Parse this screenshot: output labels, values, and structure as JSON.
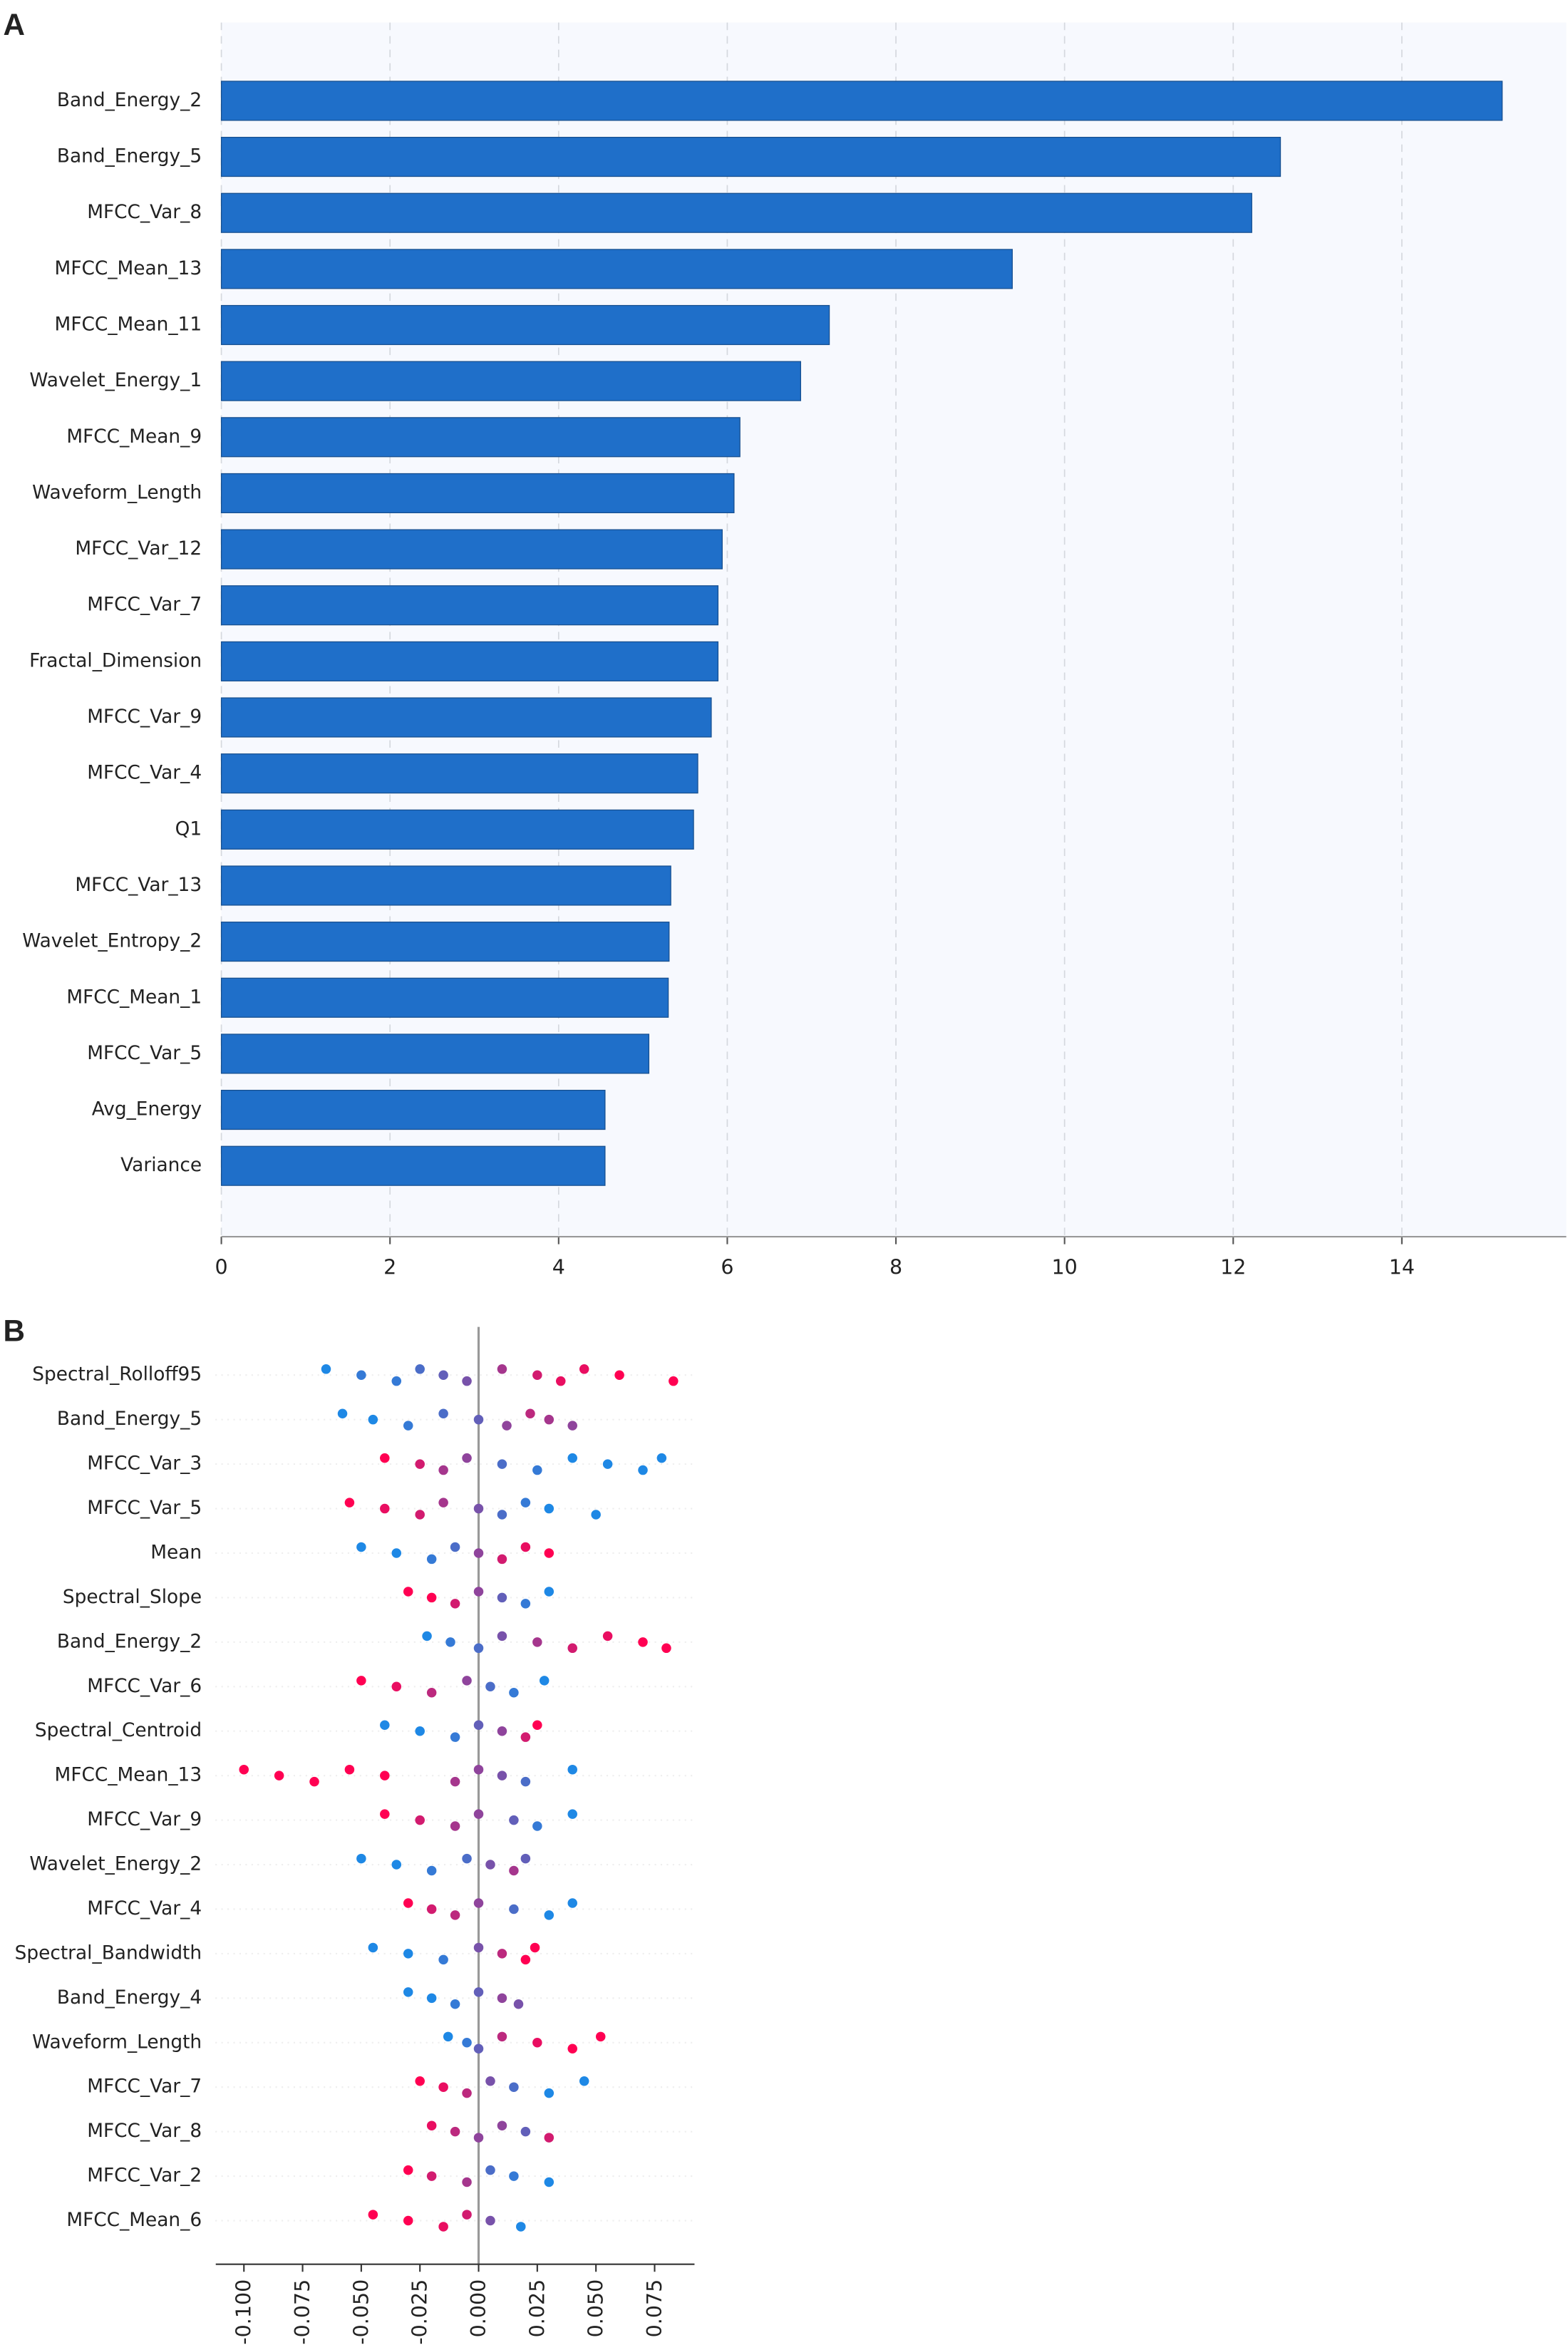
{
  "chart_data": [
    {
      "type": "bar",
      "panel": "A",
      "categories": [
        "Band_Energy_2",
        "Band_Energy_5",
        "MFCC_Var_8",
        "MFCC_Mean_13",
        "MFCC_Mean_11",
        "Wavelet_Energy_1",
        "MFCC_Mean_9",
        "Waveform_Length",
        "MFCC_Var_12",
        "MFCC_Var_7",
        "Fractal_Dimension",
        "MFCC_Var_9",
        "MFCC_Var_4",
        "Q1",
        "MFCC_Var_13",
        "Wavelet_Entropy_2",
        "MFCC_Mean_1",
        "MFCC_Var_5",
        "Avg_Energy",
        "Variance"
      ],
      "values": [
        15.19,
        12.56,
        12.22,
        9.38,
        7.21,
        6.87,
        6.15,
        6.08,
        5.94,
        5.89,
        5.89,
        5.81,
        5.65,
        5.6,
        5.33,
        5.31,
        5.3,
        5.07,
        4.55,
        4.55
      ],
      "color": "#1f6fc9",
      "xlim": [
        0,
        15.95
      ],
      "xticks": [
        0,
        2,
        4,
        6,
        8,
        10,
        12,
        14
      ],
      "grid": true
    },
    {
      "type": "beeswarm",
      "panel": "B",
      "categories": [
        "Spectral_Rolloff95",
        "Band_Energy_5",
        "MFCC_Var_3",
        "MFCC_Var_5",
        "Mean",
        "Spectral_Slope",
        "Band_Energy_2",
        "MFCC_Var_6",
        "Spectral_Centroid",
        "MFCC_Mean_13",
        "MFCC_Var_9",
        "Wavelet_Energy_2",
        "MFCC_Var_4",
        "Spectral_Bandwidth",
        "Band_Energy_4",
        "Waveform_Length",
        "MFCC_Var_7",
        "MFCC_Var_8",
        "MFCC_Var_2",
        "MFCC_Mean_6"
      ],
      "colors": [
        "#1e88e5",
        "#ff0052"
      ],
      "points": [
        {
          "values": [
            -0.065,
            -0.05,
            -0.035,
            -0.025,
            -0.015,
            -0.005,
            0.01,
            0.025,
            0.035,
            0.045,
            0.06,
            0.083
          ],
          "color_values": [
            0,
            0.1,
            0.1,
            0.2,
            0.3,
            0.4,
            0.6,
            0.8,
            0.9,
            0.9,
            1,
            1
          ]
        },
        {
          "values": [
            -0.058,
            -0.045,
            -0.03,
            -0.015,
            0,
            0.012,
            0.022,
            0.03,
            0.04
          ],
          "color_values": [
            0,
            0,
            0.1,
            0.2,
            0.3,
            0.5,
            0.7,
            0.6,
            0.5
          ]
        },
        {
          "values": [
            -0.04,
            -0.025,
            -0.015,
            -0.005,
            0.01,
            0.025,
            0.04,
            0.055,
            0.07,
            0.078
          ],
          "color_values": [
            1,
            0.8,
            0.6,
            0.5,
            0.2,
            0.1,
            0,
            0,
            0,
            0
          ]
        },
        {
          "values": [
            -0.055,
            -0.04,
            -0.025,
            -0.015,
            0,
            0.01,
            0.02,
            0.03,
            0.05
          ],
          "color_values": [
            1,
            0.9,
            0.8,
            0.6,
            0.4,
            0.2,
            0.1,
            0,
            0
          ]
        },
        {
          "values": [
            -0.05,
            -0.035,
            -0.02,
            -0.01,
            0,
            0.01,
            0.02,
            0.03
          ],
          "color_values": [
            0,
            0,
            0.1,
            0.2,
            0.5,
            0.8,
            0.9,
            1
          ]
        },
        {
          "values": [
            -0.03,
            -0.02,
            -0.01,
            0,
            0.01,
            0.02,
            0.03
          ],
          "color_values": [
            1,
            1,
            0.8,
            0.5,
            0.3,
            0.1,
            0
          ]
        },
        {
          "values": [
            -0.022,
            -0.012,
            0,
            0.01,
            0.025,
            0.04,
            0.055,
            0.07,
            0.08
          ],
          "color_values": [
            0,
            0.1,
            0.2,
            0.4,
            0.6,
            0.8,
            0.9,
            1,
            1
          ]
        },
        {
          "values": [
            -0.05,
            -0.035,
            -0.02,
            -0.005,
            0.005,
            0.015,
            0.028
          ],
          "color_values": [
            1,
            0.9,
            0.7,
            0.5,
            0.2,
            0.1,
            0
          ]
        },
        {
          "values": [
            -0.04,
            -0.025,
            -0.01,
            0,
            0.01,
            0.02,
            0.025
          ],
          "color_values": [
            0,
            0,
            0.1,
            0.3,
            0.5,
            0.8,
            1
          ]
        },
        {
          "values": [
            -0.1,
            -0.085,
            -0.07,
            -0.055,
            -0.04,
            -0.01,
            0,
            0.01,
            0.02,
            0.04
          ],
          "color_values": [
            1,
            1,
            1,
            1,
            1,
            0.6,
            0.5,
            0.4,
            0.2,
            0
          ]
        },
        {
          "values": [
            -0.04,
            -0.025,
            -0.01,
            0,
            0.015,
            0.025,
            0.04
          ],
          "color_values": [
            1,
            0.8,
            0.6,
            0.5,
            0.3,
            0.1,
            0
          ]
        },
        {
          "values": [
            -0.05,
            -0.035,
            -0.02,
            -0.005,
            0.005,
            0.015,
            0.02
          ],
          "color_values": [
            0,
            0,
            0.1,
            0.2,
            0.4,
            0.6,
            0.3
          ]
        },
        {
          "values": [
            -0.03,
            -0.02,
            -0.01,
            0,
            0.015,
            0.03,
            0.04
          ],
          "color_values": [
            1,
            0.8,
            0.7,
            0.5,
            0.2,
            0,
            0
          ]
        },
        {
          "values": [
            -0.045,
            -0.03,
            -0.015,
            0,
            0.01,
            0.02,
            0.024
          ],
          "color_values": [
            0,
            0,
            0.1,
            0.4,
            0.7,
            1,
            1
          ]
        },
        {
          "values": [
            -0.03,
            -0.02,
            -0.01,
            0,
            0.01,
            0.017
          ],
          "color_values": [
            0,
            0,
            0.1,
            0.3,
            0.5,
            0.4
          ]
        },
        {
          "values": [
            -0.013,
            -0.005,
            0,
            0.01,
            0.025,
            0.04,
            0.052
          ],
          "color_values": [
            0,
            0.1,
            0.3,
            0.7,
            0.9,
            1,
            1
          ]
        },
        {
          "values": [
            -0.025,
            -0.015,
            -0.005,
            0.005,
            0.015,
            0.03,
            0.045
          ],
          "color_values": [
            1,
            0.9,
            0.7,
            0.4,
            0.2,
            0,
            0
          ]
        },
        {
          "values": [
            -0.02,
            -0.01,
            0,
            0.01,
            0.02,
            0.03
          ],
          "color_values": [
            0.9,
            0.7,
            0.5,
            0.5,
            0.3,
            0.8
          ]
        },
        {
          "values": [
            -0.03,
            -0.02,
            -0.005,
            0.005,
            0.015,
            0.03
          ],
          "color_values": [
            1,
            0.8,
            0.6,
            0.2,
            0.1,
            0
          ]
        },
        {
          "values": [
            -0.045,
            -0.03,
            -0.015,
            -0.005,
            0.005,
            0.018
          ],
          "color_values": [
            1,
            1,
            0.9,
            0.8,
            0.4,
            0
          ]
        }
      ],
      "xlim": [
        -0.112,
        0.092
      ],
      "xticks": [
        {
          "value": -0.1,
          "label": "-0.100"
        },
        {
          "value": -0.075,
          "label": "-0.075"
        },
        {
          "value": -0.05,
          "label": "-0.050"
        },
        {
          "value": -0.025,
          "label": "-0.025"
        },
        {
          "value": 0,
          "label": "0.000"
        },
        {
          "value": 0.025,
          "label": "0.025"
        },
        {
          "value": 0.05,
          "label": "0.050"
        },
        {
          "value": 0.075,
          "label": "0.075"
        }
      ]
    }
  ]
}
